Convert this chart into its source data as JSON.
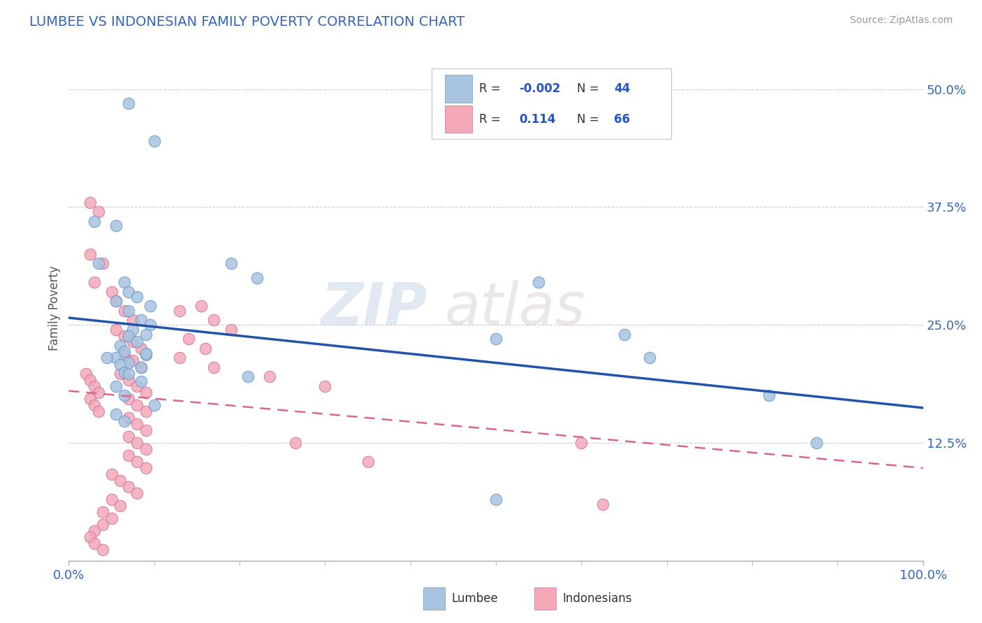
{
  "title": "LUMBEE VS INDONESIAN FAMILY POVERTY CORRELATION CHART",
  "source": "Source: ZipAtlas.com",
  "ylabel": "Family Poverty",
  "yticks": [
    0.0,
    0.125,
    0.25,
    0.375,
    0.5
  ],
  "ytick_labels": [
    "",
    "12.5%",
    "25.0%",
    "37.5%",
    "50.0%"
  ],
  "xlim": [
    0.0,
    1.0
  ],
  "ylim": [
    0.0,
    0.535
  ],
  "lumbee_R": "-0.002",
  "lumbee_N": "44",
  "indonesian_R": "0.114",
  "indonesian_N": "66",
  "lumbee_color": "#a8c4e0",
  "lumbee_edge_color": "#6699cc",
  "indonesian_color": "#f4a8b8",
  "indonesian_edge_color": "#cc7799",
  "lumbee_line_color": "#2255aa",
  "indonesian_line_color": "#dd6688",
  "background_color": "#ffffff",
  "watermark_zip": "ZIP",
  "watermark_atlas": "atlas",
  "lumbee_points": [
    [
      0.07,
      0.485
    ],
    [
      0.1,
      0.445
    ],
    [
      0.03,
      0.36
    ],
    [
      0.055,
      0.355
    ],
    [
      0.035,
      0.315
    ],
    [
      0.19,
      0.315
    ],
    [
      0.22,
      0.3
    ],
    [
      0.065,
      0.295
    ],
    [
      0.07,
      0.285
    ],
    [
      0.08,
      0.28
    ],
    [
      0.055,
      0.275
    ],
    [
      0.095,
      0.27
    ],
    [
      0.07,
      0.265
    ],
    [
      0.085,
      0.255
    ],
    [
      0.095,
      0.25
    ],
    [
      0.075,
      0.245
    ],
    [
      0.09,
      0.24
    ],
    [
      0.07,
      0.238
    ],
    [
      0.08,
      0.232
    ],
    [
      0.06,
      0.228
    ],
    [
      0.065,
      0.222
    ],
    [
      0.09,
      0.218
    ],
    [
      0.055,
      0.215
    ],
    [
      0.07,
      0.21
    ],
    [
      0.06,
      0.208
    ],
    [
      0.085,
      0.205
    ],
    [
      0.065,
      0.2
    ],
    [
      0.07,
      0.198
    ],
    [
      0.09,
      0.22
    ],
    [
      0.045,
      0.215
    ],
    [
      0.21,
      0.195
    ],
    [
      0.085,
      0.19
    ],
    [
      0.055,
      0.185
    ],
    [
      0.065,
      0.175
    ],
    [
      0.1,
      0.165
    ],
    [
      0.055,
      0.155
    ],
    [
      0.065,
      0.148
    ],
    [
      0.5,
      0.235
    ],
    [
      0.55,
      0.295
    ],
    [
      0.65,
      0.24
    ],
    [
      0.68,
      0.215
    ],
    [
      0.82,
      0.175
    ],
    [
      0.875,
      0.125
    ],
    [
      0.5,
      0.065
    ]
  ],
  "indonesian_points": [
    [
      0.025,
      0.38
    ],
    [
      0.035,
      0.37
    ],
    [
      0.025,
      0.325
    ],
    [
      0.04,
      0.315
    ],
    [
      0.03,
      0.295
    ],
    [
      0.05,
      0.285
    ],
    [
      0.055,
      0.275
    ],
    [
      0.065,
      0.265
    ],
    [
      0.075,
      0.255
    ],
    [
      0.055,
      0.245
    ],
    [
      0.065,
      0.238
    ],
    [
      0.075,
      0.232
    ],
    [
      0.085,
      0.225
    ],
    [
      0.065,
      0.218
    ],
    [
      0.075,
      0.212
    ],
    [
      0.085,
      0.205
    ],
    [
      0.06,
      0.198
    ],
    [
      0.07,
      0.192
    ],
    [
      0.08,
      0.185
    ],
    [
      0.09,
      0.178
    ],
    [
      0.07,
      0.172
    ],
    [
      0.08,
      0.165
    ],
    [
      0.09,
      0.158
    ],
    [
      0.07,
      0.152
    ],
    [
      0.08,
      0.145
    ],
    [
      0.09,
      0.138
    ],
    [
      0.07,
      0.132
    ],
    [
      0.08,
      0.125
    ],
    [
      0.09,
      0.118
    ],
    [
      0.07,
      0.112
    ],
    [
      0.08,
      0.105
    ],
    [
      0.09,
      0.098
    ],
    [
      0.05,
      0.092
    ],
    [
      0.06,
      0.085
    ],
    [
      0.07,
      0.078
    ],
    [
      0.08,
      0.072
    ],
    [
      0.05,
      0.065
    ],
    [
      0.06,
      0.058
    ],
    [
      0.04,
      0.052
    ],
    [
      0.05,
      0.045
    ],
    [
      0.04,
      0.038
    ],
    [
      0.03,
      0.032
    ],
    [
      0.025,
      0.025
    ],
    [
      0.03,
      0.018
    ],
    [
      0.04,
      0.012
    ],
    [
      0.13,
      0.265
    ],
    [
      0.155,
      0.27
    ],
    [
      0.17,
      0.255
    ],
    [
      0.19,
      0.245
    ],
    [
      0.14,
      0.235
    ],
    [
      0.16,
      0.225
    ],
    [
      0.13,
      0.215
    ],
    [
      0.17,
      0.205
    ],
    [
      0.235,
      0.195
    ],
    [
      0.265,
      0.125
    ],
    [
      0.3,
      0.185
    ],
    [
      0.35,
      0.105
    ],
    [
      0.6,
      0.125
    ],
    [
      0.625,
      0.06
    ],
    [
      0.02,
      0.198
    ],
    [
      0.025,
      0.192
    ],
    [
      0.03,
      0.185
    ],
    [
      0.035,
      0.178
    ],
    [
      0.025,
      0.172
    ],
    [
      0.03,
      0.165
    ],
    [
      0.035,
      0.158
    ]
  ]
}
